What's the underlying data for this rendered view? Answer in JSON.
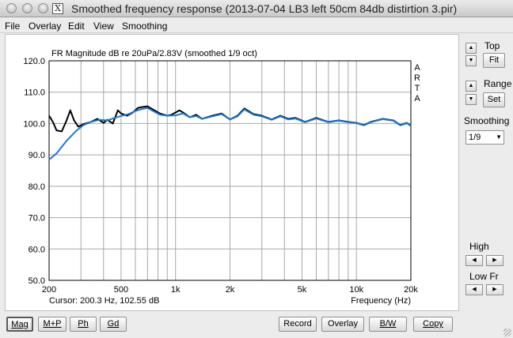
{
  "window": {
    "title": "Smoothed frequency response (2013-07-04 LB3 left 50cm 84db distirtion 3.pir)",
    "x_icon_glyph": "X"
  },
  "menu": {
    "file": "File",
    "overlay": "Overlay",
    "edit": "Edit",
    "view": "View",
    "smoothing": "Smoothing"
  },
  "plot": {
    "title": "FR Magnitude dB re 20uPa/2.83V (smoothed 1/9 oct)",
    "watermark": [
      "A",
      "R",
      "T",
      "A"
    ],
    "cursor_readout": "Cursor: 200.3 Hz, 102.55 dB",
    "x_axis_label": "Frequency (Hz)"
  },
  "chart_data": {
    "type": "line",
    "xscale": "log",
    "xlim": [
      200,
      20000
    ],
    "ylim": [
      50,
      120
    ],
    "x_ticks": [
      200,
      500,
      1000,
      2000,
      5000,
      10000,
      20000
    ],
    "x_tick_labels": [
      "200",
      "500",
      "1k",
      "2k",
      "5k",
      "10k",
      "20k"
    ],
    "y_ticks": [
      50,
      60,
      70,
      80,
      90,
      100,
      110,
      120
    ],
    "y_tick_labels": [
      "50.0",
      "60.0",
      "70.0",
      "80.0",
      "90.0",
      "100.0",
      "110.0",
      "120.0"
    ],
    "grid": true,
    "series": [
      {
        "color": "#000000",
        "points": [
          [
            200,
            102.5
          ],
          [
            210,
            100.5
          ],
          [
            220,
            97.8
          ],
          [
            235,
            97.5
          ],
          [
            250,
            101
          ],
          [
            262,
            104.2
          ],
          [
            275,
            101
          ],
          [
            290,
            99
          ],
          [
            310,
            99.8
          ],
          [
            340,
            100.5
          ],
          [
            370,
            101.5
          ],
          [
            400,
            100.2
          ],
          [
            420,
            101.2
          ],
          [
            450,
            100
          ],
          [
            480,
            104.2
          ],
          [
            500,
            103.2
          ],
          [
            540,
            102.5
          ],
          [
            580,
            103.5
          ],
          [
            620,
            105
          ],
          [
            660,
            105.3
          ],
          [
            700,
            105.5
          ],
          [
            750,
            104.5
          ],
          [
            820,
            103.2
          ],
          [
            900,
            102.5
          ],
          [
            950,
            102.8
          ],
          [
            1000,
            103.5
          ],
          [
            1050,
            104.2
          ],
          [
            1100,
            103.5
          ],
          [
            1200,
            102
          ],
          [
            1300,
            102.8
          ],
          [
            1400,
            101.5
          ],
          [
            1600,
            102.5
          ],
          [
            1800,
            103.2
          ],
          [
            2000,
            101.3
          ],
          [
            2200,
            102.5
          ],
          [
            2400,
            104.8
          ],
          [
            2700,
            103
          ],
          [
            3000,
            102.5
          ],
          [
            3400,
            101.3
          ],
          [
            3800,
            102.5
          ],
          [
            4200,
            101.5
          ],
          [
            4600,
            101.8
          ],
          [
            5200,
            100.5
          ],
          [
            6000,
            101.8
          ],
          [
            7000,
            100.5
          ],
          [
            8000,
            101
          ],
          [
            9000,
            100.5
          ],
          [
            10000,
            100.2
          ],
          [
            11000,
            99.5
          ],
          [
            12000,
            100.5
          ],
          [
            14000,
            101.5
          ],
          [
            16000,
            101
          ],
          [
            17500,
            99.5
          ],
          [
            19000,
            100.2
          ],
          [
            20000,
            99.3
          ]
        ]
      },
      {
        "color": "#1e78d0",
        "points": [
          [
            200,
            88.5
          ],
          [
            220,
            90.5
          ],
          [
            250,
            94.5
          ],
          [
            280,
            97.5
          ],
          [
            310,
            99.5
          ],
          [
            340,
            100.5
          ],
          [
            380,
            101.2
          ],
          [
            420,
            101
          ],
          [
            460,
            101.8
          ],
          [
            500,
            102.4
          ],
          [
            550,
            103
          ],
          [
            600,
            104
          ],
          [
            650,
            104.6
          ],
          [
            700,
            105
          ],
          [
            750,
            104
          ],
          [
            820,
            102.8
          ],
          [
            900,
            102.5
          ],
          [
            1000,
            102.6
          ],
          [
            1100,
            103.2
          ],
          [
            1200,
            102
          ],
          [
            1300,
            102.4
          ],
          [
            1400,
            101.5
          ],
          [
            1600,
            102.3
          ],
          [
            1800,
            103
          ],
          [
            2000,
            101.3
          ],
          [
            2200,
            102.3
          ],
          [
            2400,
            104.5
          ],
          [
            2700,
            102.8
          ],
          [
            3000,
            102.3
          ],
          [
            3400,
            101.2
          ],
          [
            3800,
            102.3
          ],
          [
            4200,
            101.3
          ],
          [
            4600,
            101.6
          ],
          [
            5200,
            100.4
          ],
          [
            6000,
            101.6
          ],
          [
            7000,
            100.4
          ],
          [
            8000,
            100.9
          ],
          [
            9000,
            100.4
          ],
          [
            10000,
            100.1
          ],
          [
            11000,
            99.4
          ],
          [
            12000,
            100.4
          ],
          [
            14000,
            101.4
          ],
          [
            16000,
            100.9
          ],
          [
            17500,
            99.4
          ],
          [
            19000,
            100.1
          ],
          [
            20000,
            99.2
          ]
        ]
      }
    ]
  },
  "sidebar": {
    "top_label": "Top",
    "fit_button": "Fit",
    "range_label": "Range",
    "set_button": "Set",
    "smoothing_label": "Smoothing",
    "smoothing_value": "1/9",
    "high_label": "High",
    "low_fr_label": "Low Fr"
  },
  "toolbar": {
    "mag": "Mag",
    "m_plus_p": "M+P",
    "ph": "Ph",
    "gd": "Gd",
    "record": "Record",
    "overlay": "Overlay",
    "bw": "B/W",
    "copy": "Copy"
  }
}
